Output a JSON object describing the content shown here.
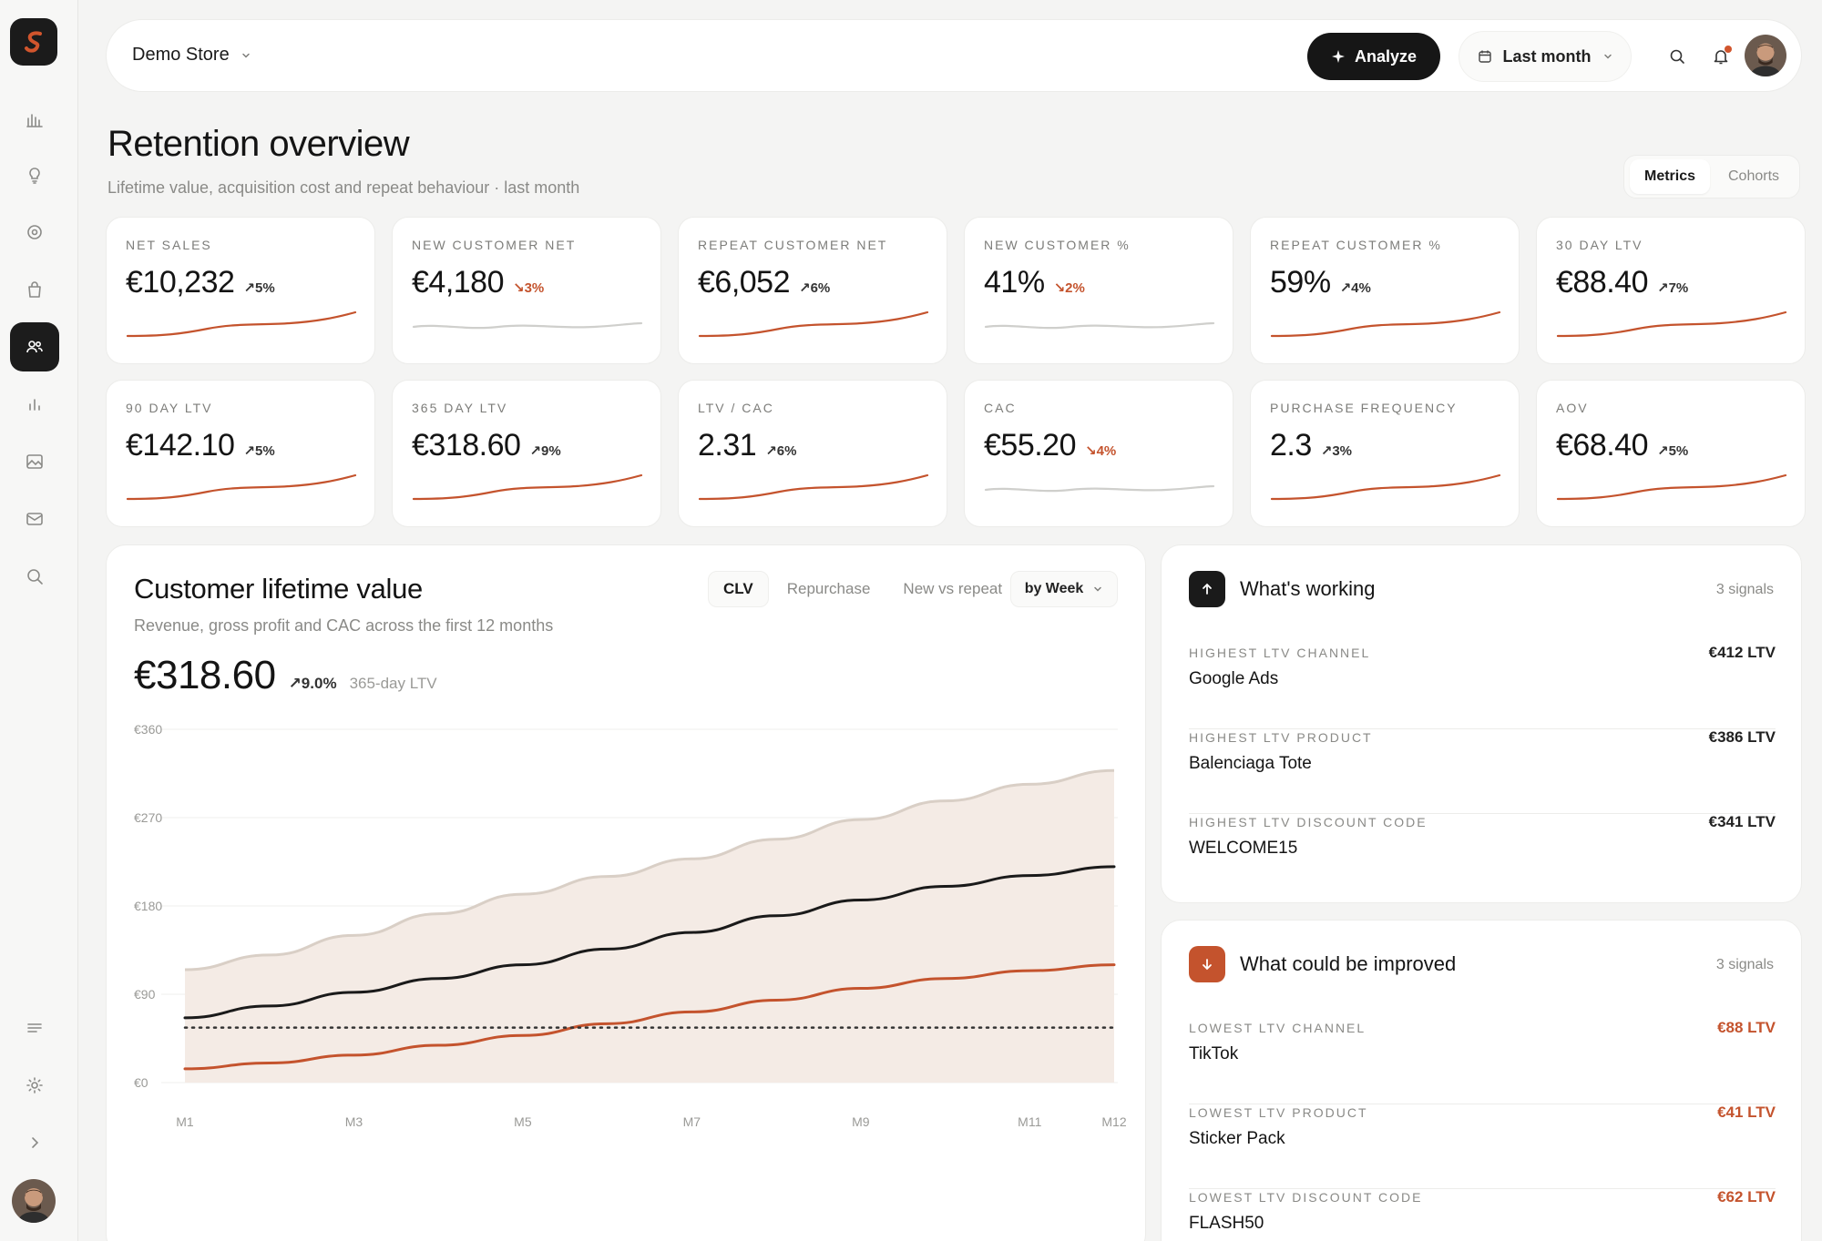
{
  "topbar": {
    "store_name": "Demo Store",
    "analyze_label": "Analyze",
    "date_range": "Last month"
  },
  "page": {
    "title": "Retention overview",
    "subtitle": "Lifetime value, acquisition cost and repeat behaviour · last month",
    "view_toggle": [
      "Metrics",
      "Cohorts"
    ],
    "view_selected": "Metrics"
  },
  "kpis": [
    {
      "label": "NET SALES",
      "value": "€10,232",
      "delta": "↗5%",
      "trend": "up"
    },
    {
      "label": "NEW CUSTOMER NET",
      "value": "€4,180",
      "delta": "↘3%",
      "trend": "down"
    },
    {
      "label": "REPEAT CUSTOMER NET",
      "value": "€6,052",
      "delta": "↗6%",
      "trend": "up"
    },
    {
      "label": "NEW CUSTOMER %",
      "value": "41%",
      "delta": "↘2%",
      "trend": "down"
    },
    {
      "label": "REPEAT CUSTOMER %",
      "value": "59%",
      "delta": "↗4%",
      "trend": "up"
    },
    {
      "label": "30 DAY LTV",
      "value": "€88.40",
      "delta": "↗7%",
      "trend": "up"
    },
    {
      "label": "90 DAY LTV",
      "value": "€142.10",
      "delta": "↗5%",
      "trend": "up"
    },
    {
      "label": "365 DAY LTV",
      "value": "€318.60",
      "delta": "↗9%",
      "trend": "up"
    },
    {
      "label": "LTV / CAC",
      "value": "2.31",
      "delta": "↗6%",
      "trend": "up"
    },
    {
      "label": "CAC",
      "value": "€55.20",
      "delta": "↘4%",
      "trend": "down"
    },
    {
      "label": "PURCHASE FREQUENCY",
      "value": "2.3",
      "delta": "↗3%",
      "trend": "up"
    },
    {
      "label": "AOV",
      "value": "€68.40",
      "delta": "↗5%",
      "trend": "up"
    }
  ],
  "clv": {
    "title": "Customer lifetime value",
    "subtitle": "Revenue, gross profit and CAC across the first 12 months",
    "tabs": [
      "CLV",
      "Repurchase",
      "New vs repeat"
    ],
    "tab_selected": "CLV",
    "granularity": "by Week",
    "big_value": "€318.60",
    "big_delta": "↗9.0%",
    "big_note": "365-day LTV"
  },
  "chart_data": {
    "type": "area",
    "title": "",
    "xlabel": "",
    "ylabel": "",
    "x": [
      "M1",
      "M2",
      "M3",
      "M4",
      "M5",
      "M6",
      "M7",
      "M8",
      "M9",
      "M10",
      "M11",
      "M12"
    ],
    "x_tick_labels": [
      "M1",
      "M3",
      "M5",
      "M7",
      "M9",
      "M11",
      "M12"
    ],
    "y_tick_labels": [
      "€360",
      "€270",
      "€180",
      "€90",
      "€0"
    ],
    "ylim": [
      0,
      360
    ],
    "grid": true,
    "legend": "none",
    "series": [
      {
        "role": "band-upper",
        "color": "#d9cfc6",
        "values": [
          115,
          130,
          150,
          172,
          192,
          210,
          228,
          248,
          268,
          287,
          304,
          318
        ]
      },
      {
        "role": "line",
        "color": "#1a1a1a",
        "values": [
          66,
          78,
          92,
          106,
          120,
          136,
          153,
          170,
          186,
          200,
          211,
          220
        ]
      },
      {
        "role": "line",
        "color": "#c4532d",
        "values": [
          14,
          20,
          28,
          38,
          48,
          60,
          72,
          84,
          96,
          106,
          114,
          120
        ]
      },
      {
        "role": "dotted-line",
        "color": "#333333",
        "values": [
          56,
          56,
          56,
          56,
          56,
          56,
          56,
          56,
          56,
          56,
          56,
          56
        ]
      }
    ]
  },
  "working": {
    "title": "What's working",
    "count": "3 signals",
    "items": [
      {
        "label": "HIGHEST LTV CHANNEL",
        "name": "Google Ads",
        "value": "€412 LTV"
      },
      {
        "label": "HIGHEST LTV PRODUCT",
        "name": "Balenciaga Tote",
        "value": "€386 LTV"
      },
      {
        "label": "HIGHEST LTV DISCOUNT CODE",
        "name": "WELCOME15",
        "value": "€341 LTV"
      }
    ]
  },
  "improve": {
    "title": "What could be improved",
    "count": "3 signals",
    "items": [
      {
        "label": "LOWEST LTV CHANNEL",
        "name": "TikTok",
        "value": "€88 LTV"
      },
      {
        "label": "LOWEST LTV PRODUCT",
        "name": "Sticker Pack",
        "value": "€41 LTV"
      },
      {
        "label": "LOWEST LTV DISCOUNT CODE",
        "name": "FLASH50",
        "value": "€62 LTV"
      }
    ]
  },
  "colors": {
    "accent": "#c4532d",
    "dark": "#161616",
    "muted": "#8a8a87"
  },
  "icons": [
    "logo-icon",
    "chart-icon",
    "bulb-icon",
    "target-icon",
    "bag-icon",
    "users-icon",
    "bars-icon",
    "image-icon",
    "mail-icon",
    "search-icon",
    "menu-icon",
    "sun-icon",
    "chevron-right-icon",
    "search-icon",
    "bell-icon",
    "calendar-icon",
    "sparkle-icon",
    "arrow-up-icon",
    "arrow-down-icon"
  ]
}
